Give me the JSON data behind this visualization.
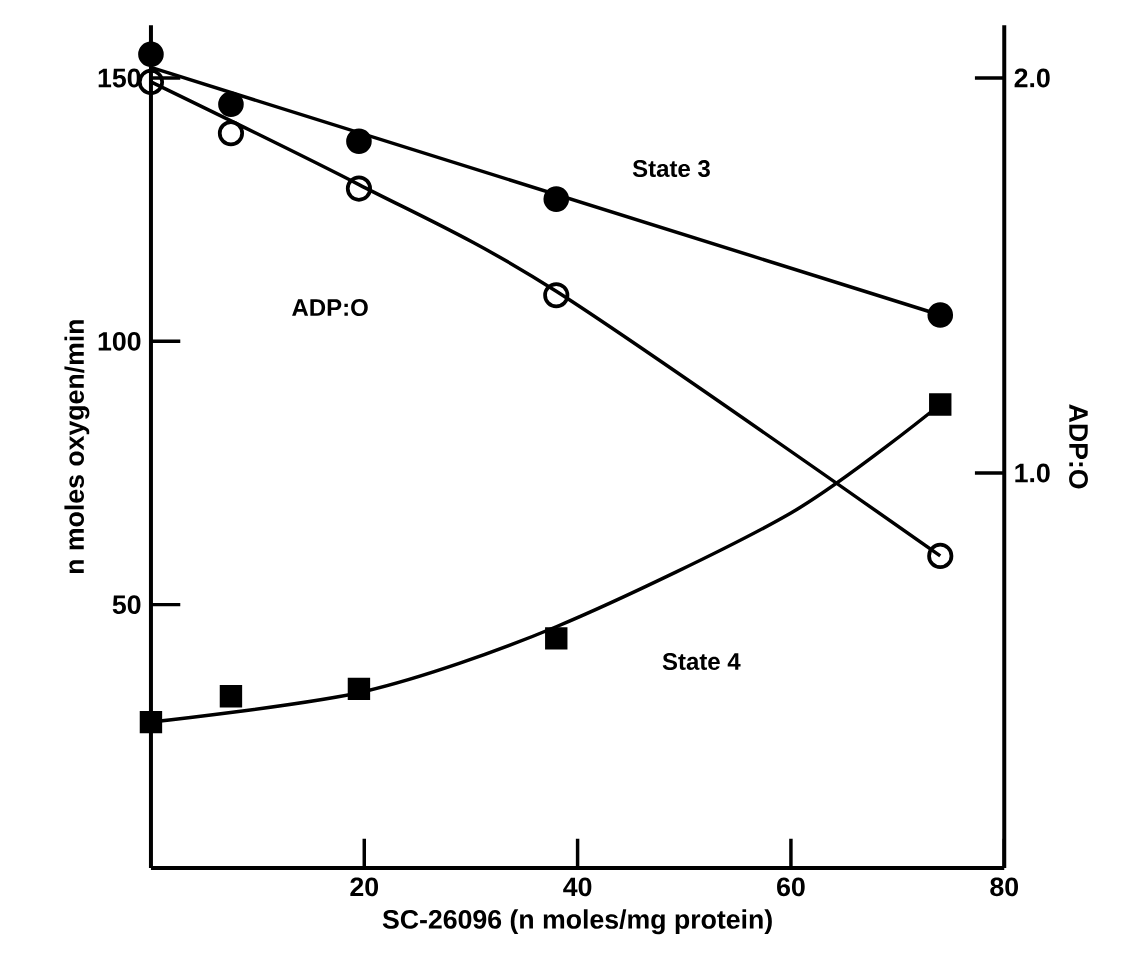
{
  "chart_data": {
    "type": "scatter",
    "xlabel": "SC-26096 (n moles/mg protein)",
    "ylabel": "n moles oxygen/min",
    "y2label": "ADP:O",
    "xlim": [
      0,
      80
    ],
    "xticks": [
      20,
      40,
      60,
      80
    ],
    "ylim": [
      0,
      160
    ],
    "yticks": [
      50,
      100,
      150
    ],
    "y2lim": [
      0,
      2.1333
    ],
    "y2ticks": [
      {
        "value": 1,
        "label": "1.0"
      },
      {
        "value": 2,
        "label": "2.0"
      }
    ],
    "grid": false,
    "annotations": [
      "State 3",
      "ADP:O",
      "State 4"
    ],
    "series": [
      {
        "color": "#000000",
        "marker": "circle",
        "x": [
          0,
          7.5,
          19.5,
          38,
          74
        ],
        "values": [
          154.5,
          145,
          138,
          127,
          105
        ]
      },
      {
        "type": "line",
        "color": "#000000",
        "marker": "none",
        "x": [
          0,
          74
        ],
        "values": [
          152,
          105
        ]
      },
      {
        "color": "#000000",
        "marker": "circle",
        "axis": "y2",
        "x": [
          0,
          7.5,
          19.5,
          38,
          74
        ],
        "values": [
          1.99,
          1.86,
          1.72,
          1.45,
          0.79
        ]
      },
      {
        "type": "line",
        "color": "#000000",
        "marker": "none",
        "axis": "y2",
        "x": [
          0,
          19.5,
          38,
          74
        ],
        "values": [
          1.99,
          1.73,
          1.46,
          0.79
        ]
      },
      {
        "color": "#000000",
        "marker": "square",
        "x": [
          0,
          7.5,
          19.5,
          38,
          74
        ],
        "values": [
          27.7,
          32.6,
          34,
          43.6,
          88
        ]
      },
      {
        "type": "line",
        "color": "#000000",
        "marker": "none",
        "x": [
          0,
          20,
          38,
          60,
          74
        ],
        "values": [
          27.7,
          33.5,
          45.8,
          67.4,
          88
        ]
      }
    ]
  }
}
